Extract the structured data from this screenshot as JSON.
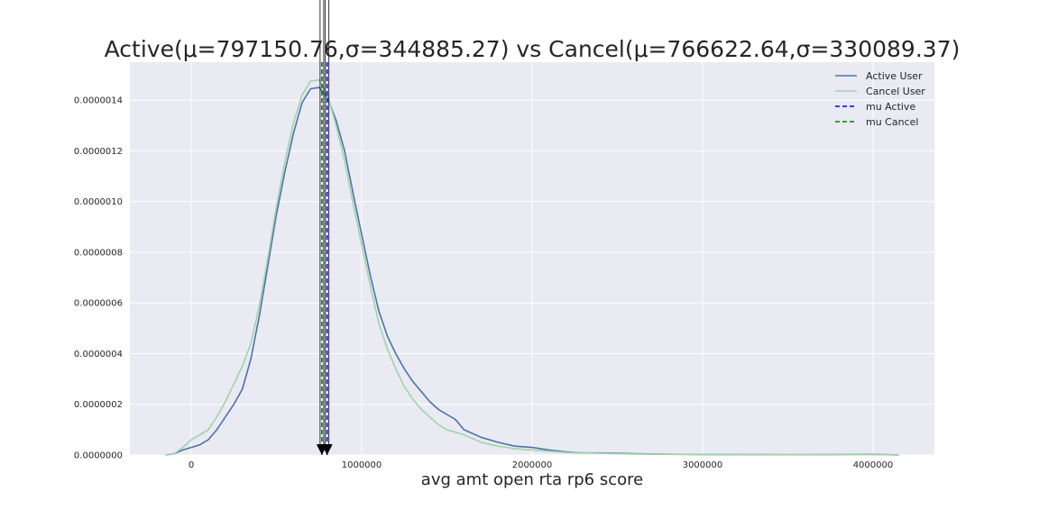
{
  "chart_data": {
    "type": "line",
    "title": "Active(μ=797150.76,σ=344885.27) vs Cancel(μ=766622.64,σ=330089.37)",
    "xlabel": "avg amt open rta rp6 score",
    "ylabel": "",
    "xlim": [
      -360000,
      4360000
    ],
    "ylim": [
      0,
      1.55e-06
    ],
    "xticks": [
      0,
      1000000,
      2000000,
      3000000,
      4000000
    ],
    "xtick_labels": [
      "0",
      "1000000",
      "2000000",
      "3000000",
      "4000000"
    ],
    "yticks": [
      0,
      2e-07,
      4e-07,
      6e-07,
      8e-07,
      1e-06,
      1.2e-06,
      1.4e-06
    ],
    "ytick_labels": [
      "0.0000000",
      "0.0000002",
      "0.0000004",
      "0.0000006",
      "0.0000008",
      "0.0000010",
      "0.0000012",
      "0.0000014"
    ],
    "grid": true,
    "legend_position": "top-right",
    "series": [
      {
        "name": "Active User",
        "color": "#4c72b0",
        "x": [
          -150000,
          -100000,
          -50000,
          0,
          50000,
          100000,
          150000,
          200000,
          250000,
          300000,
          350000,
          400000,
          450000,
          500000,
          550000,
          600000,
          650000,
          700000,
          750000,
          800000,
          850000,
          900000,
          950000,
          1000000,
          1050000,
          1100000,
          1150000,
          1200000,
          1250000,
          1300000,
          1350000,
          1400000,
          1450000,
          1500000,
          1550000,
          1600000,
          1700000,
          1800000,
          1900000,
          2000000,
          2100000,
          2200000,
          2300000,
          2400000,
          2500000,
          2600000,
          2800000,
          3000000,
          3200000,
          3500000,
          3800000,
          4000000,
          4150000
        ],
        "values": [
          0,
          5e-09,
          2e-08,
          3e-08,
          4e-08,
          6e-08,
          1e-07,
          1.5e-07,
          2e-07,
          2.6e-07,
          3.8e-07,
          5.5e-07,
          7.5e-07,
          9.5e-07,
          1.12e-06,
          1.27e-06,
          1.39e-06,
          1.445e-06,
          1.45e-06,
          1.41e-06,
          1.32e-06,
          1.2e-06,
          1.03e-06,
          8.7e-07,
          7.1e-07,
          5.7e-07,
          4.7e-07,
          4e-07,
          3.4e-07,
          2.9e-07,
          2.5e-07,
          2.1e-07,
          1.8e-07,
          1.6e-07,
          1.4e-07,
          1e-07,
          7e-08,
          5e-08,
          3.5e-08,
          3e-08,
          2e-08,
          1.2e-08,
          8e-09,
          8e-09,
          7e-09,
          5e-09,
          3e-09,
          2e-09,
          2e-09,
          1e-09,
          2e-09,
          3e-09,
          0
        ]
      },
      {
        "name": "Cancel User",
        "color": "#a1d3a8",
        "x": [
          -150000,
          -100000,
          -50000,
          0,
          50000,
          100000,
          150000,
          200000,
          250000,
          300000,
          350000,
          400000,
          450000,
          500000,
          550000,
          600000,
          650000,
          700000,
          750000,
          800000,
          850000,
          900000,
          950000,
          1000000,
          1050000,
          1100000,
          1150000,
          1200000,
          1250000,
          1300000,
          1350000,
          1400000,
          1450000,
          1500000,
          1550000,
          1600000,
          1700000,
          1800000,
          1900000,
          2000000,
          2100000,
          2200000,
          2300000,
          2400000,
          2500000,
          2600000,
          2800000,
          3000000,
          3200000,
          3500000,
          3800000,
          4000000,
          4150000
        ],
        "values": [
          0,
          5e-09,
          3e-08,
          6e-08,
          8e-08,
          1e-07,
          1.5e-07,
          2.1e-07,
          2.8e-07,
          3.5e-07,
          4.4e-07,
          5.9e-07,
          7.8e-07,
          9.8e-07,
          1.16e-06,
          1.31e-06,
          1.42e-06,
          1.475e-06,
          1.48e-06,
          1.42e-06,
          1.3e-06,
          1.16e-06,
          9.9e-07,
          8.3e-07,
          6.7e-07,
          5.2e-07,
          4.2e-07,
          3.4e-07,
          2.7e-07,
          2.2e-07,
          1.8e-07,
          1.5e-07,
          1.2e-07,
          1e-07,
          9e-08,
          8e-08,
          5e-08,
          3.5e-08,
          2.5e-08,
          2e-08,
          1.5e-08,
          1e-08,
          8e-09,
          7e-09,
          5e-09,
          4e-09,
          3e-09,
          2e-09,
          2e-09,
          1e-09,
          2e-09,
          2e-09,
          0
        ]
      }
    ],
    "reference_lines": [
      {
        "name": "mu Active",
        "x": 797150.76,
        "color": "#0000ff",
        "style": "dashed"
      },
      {
        "name": "mu Cancel",
        "x": 766622.64,
        "color": "#008000",
        "style": "dashed"
      }
    ],
    "plot_bg": "#eaeaf2",
    "grid_color": "#ffffff",
    "arrow_color": "#000000"
  }
}
